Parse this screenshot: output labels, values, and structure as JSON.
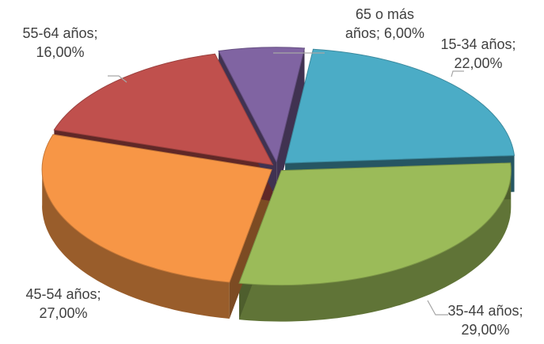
{
  "chart_data": {
    "type": "pie",
    "variant": "3d-exploded",
    "title": "",
    "slices": [
      {
        "category": "15-34 años",
        "value": 22.0,
        "label_value": "22,00%",
        "color": "#4bacc6"
      },
      {
        "category": "35-44 años",
        "value": 29.0,
        "label_value": "29,00%",
        "color": "#9bbb59"
      },
      {
        "category": "45-54 años",
        "value": 27.0,
        "label_value": "27,00%",
        "color": "#f79646"
      },
      {
        "category": "55-64 años",
        "value": 16.0,
        "label_value": "16,00%",
        "color": "#c0504d"
      },
      {
        "category": "65 o más años",
        "value": 6.0,
        "label_value": "6,00%",
        "color": "#8064a2"
      }
    ],
    "labels": [
      {
        "lines": [
          "15-34 años;",
          "22,00%"
        ]
      },
      {
        "lines": [
          "35-44 años;",
          "29,00%"
        ]
      },
      {
        "lines": [
          "45-54 años;",
          "27,00%"
        ]
      },
      {
        "lines": [
          "55-64 años;",
          "16,00%"
        ]
      },
      {
        "lines": [
          "65 o más",
          "años; 6,00%"
        ]
      }
    ],
    "legend": "none",
    "label_style": "category; value"
  }
}
